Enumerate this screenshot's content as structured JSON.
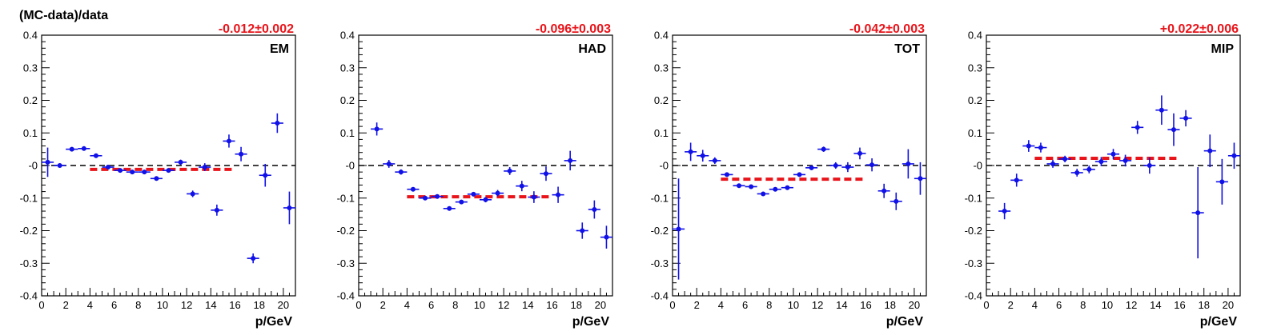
{
  "figure": {
    "ylabel": "(MC-data)/data",
    "colors": {
      "points": "#1010e8",
      "fit": "#e8141a",
      "zero": "#000000",
      "axes": "#000000"
    }
  },
  "chart_data": [
    {
      "type": "scatter",
      "panel_label": "EM",
      "fit_label": "-0.012±0.002",
      "fit": {
        "value": -0.012,
        "x_range": [
          4,
          16
        ]
      },
      "xlabel": "p/GeV",
      "ylabel": "(MC-data)/data",
      "xlim": [
        0,
        21
      ],
      "ylim": [
        -0.4,
        0.4
      ],
      "x_ticks": [
        0,
        2,
        4,
        6,
        8,
        10,
        12,
        14,
        16,
        18,
        20
      ],
      "y_ticks": [
        -0.4,
        -0.3,
        -0.2,
        -0.1,
        0,
        0.1,
        0.2,
        0.3,
        0.4
      ],
      "grid": false,
      "points": [
        {
          "x": 0.5,
          "y": 0.01,
          "yerr": 0.045
        },
        {
          "x": 1.5,
          "y": 0.0,
          "yerr": 0.005
        },
        {
          "x": 2.5,
          "y": 0.05,
          "yerr": 0.004
        },
        {
          "x": 3.5,
          "y": 0.052,
          "yerr": 0.004
        },
        {
          "x": 4.5,
          "y": 0.03,
          "yerr": 0.004
        },
        {
          "x": 5.5,
          "y": -0.005,
          "yerr": 0.004
        },
        {
          "x": 6.5,
          "y": -0.015,
          "yerr": 0.004
        },
        {
          "x": 7.5,
          "y": -0.02,
          "yerr": 0.004
        },
        {
          "x": 8.5,
          "y": -0.02,
          "yerr": 0.005
        },
        {
          "x": 9.5,
          "y": -0.04,
          "yerr": 0.006
        },
        {
          "x": 10.5,
          "y": -0.015,
          "yerr": 0.006
        },
        {
          "x": 11.5,
          "y": 0.01,
          "yerr": 0.008
        },
        {
          "x": 12.5,
          "y": -0.087,
          "yerr": 0.01
        },
        {
          "x": 13.5,
          "y": -0.005,
          "yerr": 0.012
        },
        {
          "x": 14.5,
          "y": -0.137,
          "yerr": 0.017
        },
        {
          "x": 15.5,
          "y": 0.075,
          "yerr": 0.02
        },
        {
          "x": 16.5,
          "y": 0.035,
          "yerr": 0.022
        },
        {
          "x": 17.5,
          "y": -0.285,
          "yerr": 0.015
        },
        {
          "x": 18.5,
          "y": -0.03,
          "yerr": 0.035
        },
        {
          "x": 19.5,
          "y": 0.13,
          "yerr": 0.03
        },
        {
          "x": 20.5,
          "y": -0.13,
          "yerr": 0.05
        }
      ]
    },
    {
      "type": "scatter",
      "panel_label": "HAD",
      "fit_label": "-0.096±0.003",
      "fit": {
        "value": -0.096,
        "x_range": [
          4,
          16
        ]
      },
      "xlabel": "p/GeV",
      "ylabel": "",
      "xlim": [
        0,
        21
      ],
      "ylim": [
        -0.4,
        0.4
      ],
      "x_ticks": [
        0,
        2,
        4,
        6,
        8,
        10,
        12,
        14,
        16,
        18,
        20
      ],
      "y_ticks": [
        -0.4,
        -0.3,
        -0.2,
        -0.1,
        0,
        0.1,
        0.2,
        0.3,
        0.4
      ],
      "grid": false,
      "points": [
        {
          "x": 1.5,
          "y": 0.112,
          "yerr": 0.02
        },
        {
          "x": 2.5,
          "y": 0.005,
          "yerr": 0.012
        },
        {
          "x": 3.5,
          "y": -0.02,
          "yerr": 0.008
        },
        {
          "x": 4.5,
          "y": -0.073,
          "yerr": 0.006
        },
        {
          "x": 5.5,
          "y": -0.1,
          "yerr": 0.005
        },
        {
          "x": 6.5,
          "y": -0.095,
          "yerr": 0.005
        },
        {
          "x": 7.5,
          "y": -0.132,
          "yerr": 0.005
        },
        {
          "x": 8.5,
          "y": -0.112,
          "yerr": 0.006
        },
        {
          "x": 9.5,
          "y": -0.088,
          "yerr": 0.007
        },
        {
          "x": 10.5,
          "y": -0.105,
          "yerr": 0.008
        },
        {
          "x": 11.5,
          "y": -0.085,
          "yerr": 0.01
        },
        {
          "x": 12.5,
          "y": -0.017,
          "yerr": 0.012
        },
        {
          "x": 13.5,
          "y": -0.063,
          "yerr": 0.016
        },
        {
          "x": 14.5,
          "y": -0.097,
          "yerr": 0.018
        },
        {
          "x": 15.5,
          "y": -0.025,
          "yerr": 0.022
        },
        {
          "x": 16.5,
          "y": -0.09,
          "yerr": 0.025
        },
        {
          "x": 17.5,
          "y": 0.015,
          "yerr": 0.03
        },
        {
          "x": 18.5,
          "y": -0.2,
          "yerr": 0.025
        },
        {
          "x": 19.5,
          "y": -0.135,
          "yerr": 0.028
        },
        {
          "x": 20.5,
          "y": -0.22,
          "yerr": 0.035
        }
      ]
    },
    {
      "type": "scatter",
      "panel_label": "TOT",
      "fit_label": "-0.042±0.003",
      "fit": {
        "value": -0.042,
        "x_range": [
          4,
          16
        ]
      },
      "xlabel": "p/GeV",
      "ylabel": "",
      "xlim": [
        0,
        21
      ],
      "ylim": [
        -0.4,
        0.4
      ],
      "x_ticks": [
        0,
        2,
        4,
        6,
        8,
        10,
        12,
        14,
        16,
        18,
        20
      ],
      "y_ticks": [
        -0.4,
        -0.3,
        -0.2,
        -0.1,
        0,
        0.1,
        0.2,
        0.3,
        0.4
      ],
      "grid": false,
      "points": [
        {
          "x": 0.5,
          "y": -0.195,
          "yerr": 0.155
        },
        {
          "x": 1.5,
          "y": 0.042,
          "yerr": 0.028
        },
        {
          "x": 2.5,
          "y": 0.03,
          "yerr": 0.018
        },
        {
          "x": 3.5,
          "y": 0.015,
          "yerr": 0.01
        },
        {
          "x": 4.5,
          "y": -0.028,
          "yerr": 0.006
        },
        {
          "x": 5.5,
          "y": -0.062,
          "yerr": 0.005
        },
        {
          "x": 6.5,
          "y": -0.065,
          "yerr": 0.005
        },
        {
          "x": 7.5,
          "y": -0.087,
          "yerr": 0.005
        },
        {
          "x": 8.5,
          "y": -0.073,
          "yerr": 0.005
        },
        {
          "x": 9.5,
          "y": -0.068,
          "yerr": 0.006
        },
        {
          "x": 10.5,
          "y": -0.028,
          "yerr": 0.006
        },
        {
          "x": 11.5,
          "y": -0.007,
          "yerr": 0.007
        },
        {
          "x": 12.5,
          "y": 0.05,
          "yerr": 0.008
        },
        {
          "x": 13.5,
          "y": 0.0,
          "yerr": 0.01
        },
        {
          "x": 14.5,
          "y": -0.005,
          "yerr": 0.015
        },
        {
          "x": 15.5,
          "y": 0.037,
          "yerr": 0.018
        },
        {
          "x": 16.5,
          "y": 0.002,
          "yerr": 0.02
        },
        {
          "x": 17.5,
          "y": -0.078,
          "yerr": 0.022
        },
        {
          "x": 18.5,
          "y": -0.11,
          "yerr": 0.027
        },
        {
          "x": 19.5,
          "y": 0.005,
          "yerr": 0.045
        },
        {
          "x": 20.5,
          "y": -0.04,
          "yerr": 0.05
        }
      ]
    },
    {
      "type": "scatter",
      "panel_label": "MIP",
      "fit_label": "+0.022±0.006",
      "fit": {
        "value": 0.022,
        "x_range": [
          4,
          16
        ]
      },
      "xlabel": "p/GeV",
      "ylabel": "",
      "xlim": [
        0,
        21
      ],
      "ylim": [
        -0.4,
        0.4
      ],
      "x_ticks": [
        0,
        2,
        4,
        6,
        8,
        10,
        12,
        14,
        16,
        18,
        20
      ],
      "y_ticks": [
        -0.4,
        -0.3,
        -0.2,
        -0.1,
        0,
        0.1,
        0.2,
        0.3,
        0.4
      ],
      "grid": false,
      "points": [
        {
          "x": 1.5,
          "y": -0.14,
          "yerr": 0.025
        },
        {
          "x": 2.5,
          "y": -0.045,
          "yerr": 0.02
        },
        {
          "x": 3.5,
          "y": 0.06,
          "yerr": 0.018
        },
        {
          "x": 4.5,
          "y": 0.055,
          "yerr": 0.015
        },
        {
          "x": 5.5,
          "y": 0.005,
          "yerr": 0.012
        },
        {
          "x": 6.5,
          "y": 0.02,
          "yerr": 0.01
        },
        {
          "x": 7.5,
          "y": -0.022,
          "yerr": 0.012
        },
        {
          "x": 8.5,
          "y": -0.012,
          "yerr": 0.012
        },
        {
          "x": 9.5,
          "y": 0.012,
          "yerr": 0.014
        },
        {
          "x": 10.5,
          "y": 0.035,
          "yerr": 0.016
        },
        {
          "x": 11.5,
          "y": 0.015,
          "yerr": 0.018
        },
        {
          "x": 12.5,
          "y": 0.117,
          "yerr": 0.02
        },
        {
          "x": 13.5,
          "y": 0.0,
          "yerr": 0.025
        },
        {
          "x": 14.5,
          "y": 0.17,
          "yerr": 0.045
        },
        {
          "x": 15.5,
          "y": 0.11,
          "yerr": 0.05
        },
        {
          "x": 16.5,
          "y": 0.145,
          "yerr": 0.025
        },
        {
          "x": 17.5,
          "y": -0.145,
          "yerr": 0.14
        },
        {
          "x": 18.5,
          "y": 0.045,
          "yerr": 0.05
        },
        {
          "x": 19.5,
          "y": -0.05,
          "yerr": 0.07
        },
        {
          "x": 20.5,
          "y": 0.03,
          "yerr": 0.04
        }
      ]
    }
  ]
}
